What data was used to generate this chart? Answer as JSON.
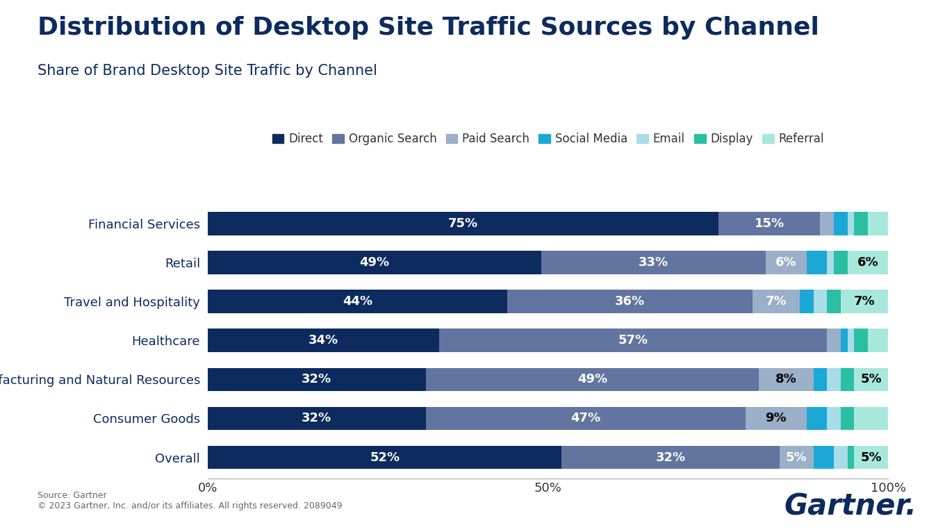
{
  "title": "Distribution of Desktop Site Traffic Sources by Channel",
  "subtitle": "Share of Brand Desktop Site Traffic by Channel",
  "categories": [
    "Financial Services",
    "Retail",
    "Travel and Hospitality",
    "Healthcare",
    "Manufacturing and Natural Resources",
    "Consumer Goods",
    "Overall"
  ],
  "channels": [
    "Direct",
    "Organic Search",
    "Paid Search",
    "Social Media",
    "Email",
    "Display",
    "Referral"
  ],
  "colors": [
    "#0d2b5e",
    "#6275a0",
    "#9aafc8",
    "#1ba8d4",
    "#a8dce8",
    "#2abfa3",
    "#a8e8dc"
  ],
  "data": {
    "Financial Services": [
      75,
      15,
      2,
      2,
      1,
      2,
      3
    ],
    "Retail": [
      49,
      33,
      6,
      3,
      1,
      2,
      6
    ],
    "Travel and Hospitality": [
      44,
      36,
      7,
      2,
      2,
      2,
      7
    ],
    "Healthcare": [
      34,
      57,
      2,
      1,
      1,
      2,
      3
    ],
    "Manufacturing and Natural Resources": [
      32,
      49,
      8,
      2,
      2,
      2,
      5
    ],
    "Consumer Goods": [
      32,
      47,
      9,
      3,
      2,
      2,
      5
    ],
    "Overall": [
      52,
      32,
      5,
      3,
      2,
      1,
      5
    ]
  },
  "show_labels": {
    "Financial Services": [
      1,
      1,
      0,
      0,
      0,
      0,
      0
    ],
    "Retail": [
      1,
      1,
      1,
      0,
      0,
      0,
      1
    ],
    "Travel and Hospitality": [
      1,
      1,
      1,
      0,
      0,
      0,
      1
    ],
    "Healthcare": [
      1,
      1,
      0,
      0,
      0,
      0,
      0
    ],
    "Manufacturing and Natural Resources": [
      1,
      1,
      1,
      0,
      0,
      0,
      1
    ],
    "Consumer Goods": [
      1,
      1,
      1,
      0,
      0,
      0,
      0
    ],
    "Overall": [
      1,
      1,
      1,
      0,
      0,
      0,
      1
    ]
  },
  "label_colors": {
    "Financial Services": [
      "w",
      "w",
      "w",
      "w",
      "w",
      "w",
      "w"
    ],
    "Retail": [
      "w",
      "w",
      "w",
      "w",
      "w",
      "w",
      "k"
    ],
    "Travel and Hospitality": [
      "w",
      "w",
      "w",
      "w",
      "w",
      "w",
      "k"
    ],
    "Healthcare": [
      "w",
      "w",
      "w",
      "w",
      "w",
      "w",
      "w"
    ],
    "Manufacturing and Natural Resources": [
      "w",
      "w",
      "k",
      "w",
      "w",
      "w",
      "k"
    ],
    "Consumer Goods": [
      "w",
      "w",
      "k",
      "w",
      "w",
      "w",
      "w"
    ],
    "Overall": [
      "w",
      "w",
      "w",
      "w",
      "w",
      "w",
      "k"
    ]
  },
  "background_color": "#ffffff",
  "title_color": "#0d2b5e",
  "subtitle_color": "#0d2b5e",
  "source_text": "Source: Gartner\n© 2023 Gartner, Inc. and/or its affiliates. All rights reserved. 2089049",
  "gartner_text": "Gartner.",
  "title_fontsize": 26,
  "subtitle_fontsize": 15,
  "legend_fontsize": 12,
  "bar_label_fontsize": 13,
  "tick_fontsize": 13,
  "source_fontsize": 9,
  "gartner_fontsize": 30
}
